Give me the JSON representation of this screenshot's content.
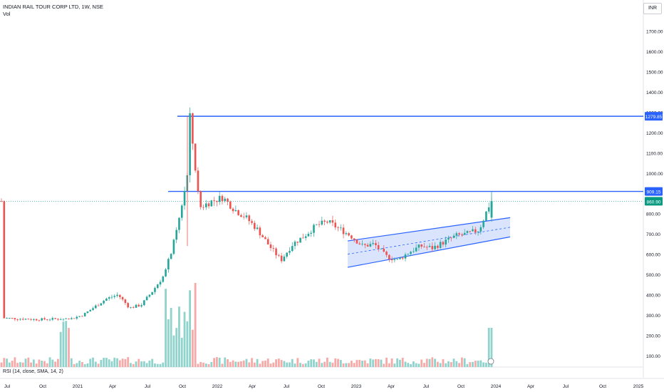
{
  "header": {
    "title": "INDIAN RAIL TOUR CORP LTD, 1W, NSE",
    "volume_label": "Vol",
    "currency": "INR"
  },
  "indicator": {
    "rsi_label": "RSI (14, close, SMA, 14, 2)"
  },
  "colors": {
    "up": "#26a69a",
    "down": "#ef5350",
    "vol_up": "#8fd3cc",
    "vol_down": "#f7a9a7",
    "level": "#2962ff",
    "channel_fill": "#bbd0fb"
  },
  "chart_data": {
    "type": "candlestick",
    "title": "INDIAN RAIL TOUR CORP LTD, 1W, NSE",
    "xlabel": "",
    "ylabel": "",
    "ylim": [
      0,
      1800
    ],
    "y_ticks": [
      "100.00",
      "200.00",
      "300.00",
      "400.00",
      "500.00",
      "600.00",
      "700.00",
      "800.00",
      "900.00",
      "1000.00",
      "1100.00",
      "1200.00",
      "1300.00",
      "1400.00",
      "1500.00",
      "1600.00",
      "1700.00"
    ],
    "x_ticks": [
      "Jul",
      "Oct",
      "2021",
      "Apr",
      "Jul",
      "Oct",
      "2022",
      "Apr",
      "Jul",
      "Oct",
      "2023",
      "Apr",
      "Jul",
      "Oct",
      "2024",
      "Apr",
      "Jul",
      "Oct",
      "2025"
    ],
    "horizontal_levels": [
      {
        "value": 1279.85,
        "label": "1279.85",
        "color": "#2962ff"
      },
      {
        "value": 909.15,
        "label": "909.15",
        "color": "#2962ff"
      }
    ],
    "last_price": {
      "value": 860.9,
      "label": "860.90",
      "color": "#089981"
    },
    "channel": {
      "start": "2023-01",
      "end": "2023-12",
      "upper": [
        665,
        780
      ],
      "lower": [
        535,
        685
      ]
    },
    "price_path": [
      [
        "2020-06",
        285
      ],
      [
        "2020-09",
        278
      ],
      [
        "2020-12",
        282
      ],
      [
        "2021-01",
        300
      ],
      [
        "2021-03",
        380
      ],
      [
        "2021-04",
        400
      ],
      [
        "2021-05",
        335
      ],
      [
        "2021-06",
        350
      ],
      [
        "2021-07",
        420
      ],
      [
        "2021-08",
        500
      ],
      [
        "2021-09",
        700
      ],
      [
        "2021-10",
        1000
      ],
      [
        "2021-10-20",
        1279.85
      ],
      [
        "2021-11",
        830
      ],
      [
        "2021-12",
        860
      ],
      [
        "2022-01",
        880
      ],
      [
        "2022-02",
        820
      ],
      [
        "2022-03",
        780
      ],
      [
        "2022-04",
        720
      ],
      [
        "2022-05",
        640
      ],
      [
        "2022-06",
        570
      ],
      [
        "2022-07",
        650
      ],
      [
        "2022-08",
        690
      ],
      [
        "2022-09",
        740
      ],
      [
        "2022-10",
        760
      ],
      [
        "2022-12",
        690
      ],
      [
        "2023-01",
        640
      ],
      [
        "2023-02",
        650
      ],
      [
        "2023-03",
        590
      ],
      [
        "2023-04",
        570
      ],
      [
        "2023-05",
        610
      ],
      [
        "2023-06",
        640
      ],
      [
        "2023-07",
        630
      ],
      [
        "2023-08",
        660
      ],
      [
        "2023-09",
        690
      ],
      [
        "2023-10",
        700
      ],
      [
        "2023-11",
        720
      ],
      [
        "2023-12",
        860.9
      ]
    ]
  }
}
